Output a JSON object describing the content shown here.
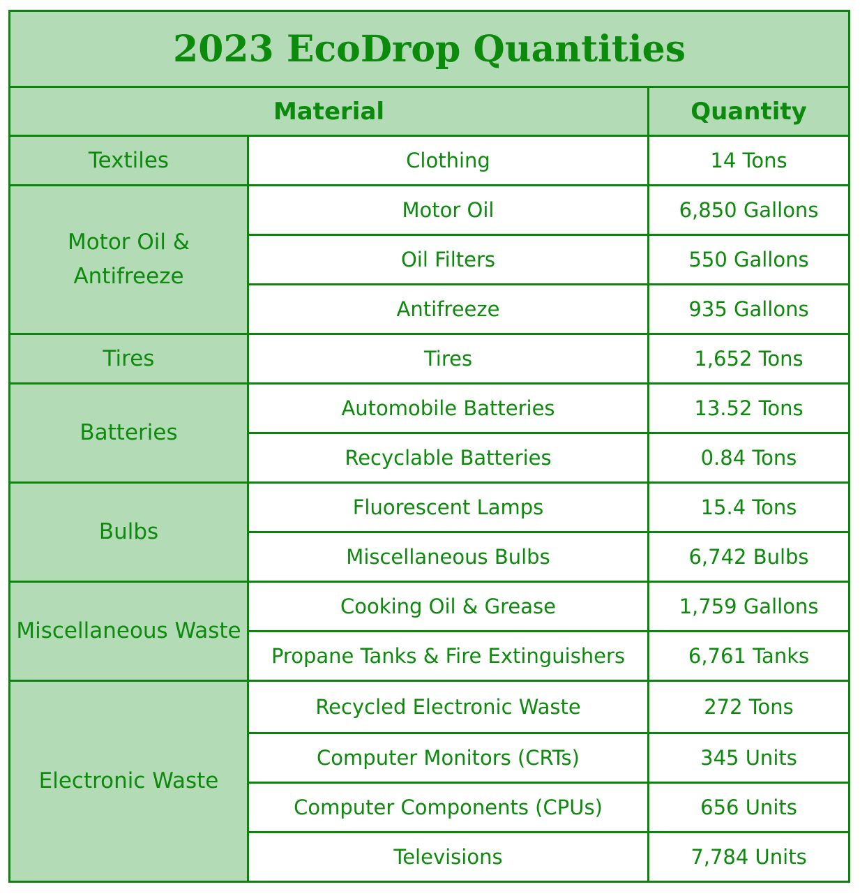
{
  "title": "2023 EcoDrop Quantities",
  "headers": {
    "material": "Material",
    "quantity": "Quantity"
  },
  "colors": {
    "header_bg": "#b3dbb6",
    "text": "#0b8a0b",
    "border": "#0b840b"
  },
  "groups": [
    {
      "category": "Textiles",
      "rows": [
        {
          "item": "Clothing",
          "qty": "14 Tons"
        }
      ]
    },
    {
      "category": "Motor Oil & Antifreeze",
      "rows": [
        {
          "item": "Motor Oil",
          "qty": "6,850 Gallons"
        },
        {
          "item": "Oil Filters",
          "qty": "550 Gallons"
        },
        {
          "item": "Antifreeze",
          "qty": "935 Gallons"
        }
      ]
    },
    {
      "category": "Tires",
      "rows": [
        {
          "item": "Tires",
          "qty": "1,652 Tons"
        }
      ]
    },
    {
      "category": "Batteries",
      "rows": [
        {
          "item": "Automobile Batteries",
          "qty": "13.52 Tons"
        },
        {
          "item": "Recyclable Batteries",
          "qty": "0.84 Tons"
        }
      ]
    },
    {
      "category": "Bulbs",
      "rows": [
        {
          "item": "Fluorescent Lamps",
          "qty": "15.4 Tons"
        },
        {
          "item": "Miscellaneous Bulbs",
          "qty": "6,742 Bulbs"
        }
      ]
    },
    {
      "category": "Miscellaneous Waste",
      "rows": [
        {
          "item": "Cooking Oil & Grease",
          "qty": "1,759 Gallons"
        },
        {
          "item": "Propane Tanks & Fire Extinguishers",
          "qty": "6,761 Tanks"
        }
      ]
    },
    {
      "category": "Electronic Waste",
      "rows": [
        {
          "item": "Recycled Electronic Waste",
          "qty": "272 Tons"
        },
        {
          "item": "Computer Monitors (CRTs)",
          "qty": "345 Units"
        },
        {
          "item": "Computer Components (CPUs)",
          "qty": "656 Units"
        },
        {
          "item": "Televisions",
          "qty": "7,784 Units"
        }
      ]
    }
  ]
}
